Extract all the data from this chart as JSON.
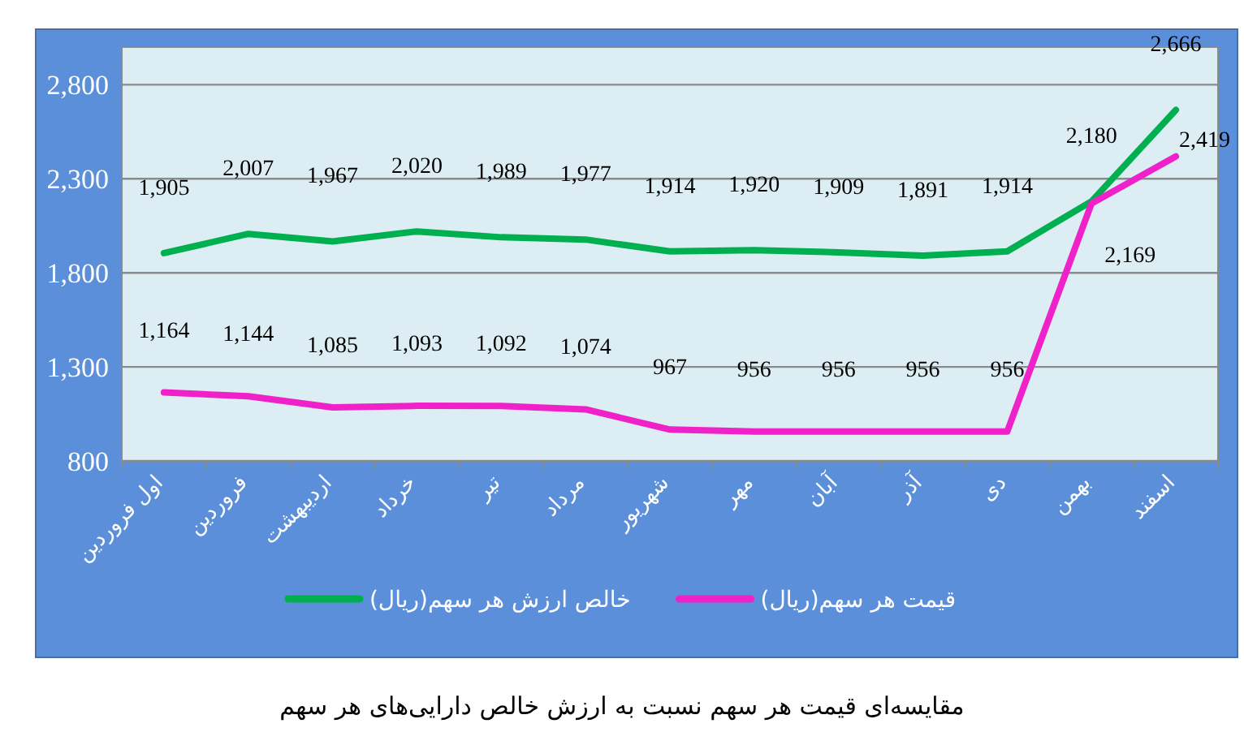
{
  "chart_data": {
    "type": "line",
    "title": "مقایسه‌ای قیمت هر سهم نسبت به ارزش خالص دارایی‌های هر سهم",
    "categories": [
      "اول فروردین",
      "فروردین",
      "اردیبهشت",
      "خرداد",
      "تیر",
      "مرداد",
      "شهریور",
      "مهر",
      "آبان",
      "آذر",
      "دی",
      "بهمن",
      "اسفند"
    ],
    "series": [
      {
        "name": "خالص ارزش هر سهم(ریال)",
        "color": "#00b050",
        "values": [
          1905,
          2007,
          1967,
          2020,
          1989,
          1977,
          1914,
          1920,
          1909,
          1891,
          1914,
          2180,
          2666
        ],
        "value_labels": [
          "1,905",
          "2,007",
          "1,967",
          "2,020",
          "1,989",
          "1,977",
          "1,914",
          "1,920",
          "1,909",
          "1,891",
          "1,914",
          "2,180",
          "2,666"
        ]
      },
      {
        "name": "قیمت هر سهم(ریال)",
        "color": "#ee22c8",
        "values": [
          1164,
          1144,
          1085,
          1093,
          1092,
          1074,
          967,
          956,
          956,
          956,
          956,
          2169,
          2419
        ],
        "value_labels": [
          "1,164",
          "1,144",
          "1,085",
          "1,093",
          "1,092",
          "1,074",
          "967",
          "956",
          "956",
          "956",
          "956",
          "2,169",
          "2,419"
        ]
      }
    ],
    "ylim": [
      800,
      3000
    ],
    "yticks": [
      {
        "value": 800,
        "label": "800"
      },
      {
        "value": 1300,
        "label": "1,300"
      },
      {
        "value": 1800,
        "label": "1,800"
      },
      {
        "value": 2300,
        "label": "2,300"
      },
      {
        "value": 2800,
        "label": "2,800"
      }
    ],
    "grid": "y",
    "legend": "bottom",
    "marker": "none",
    "line_style": "solid"
  }
}
